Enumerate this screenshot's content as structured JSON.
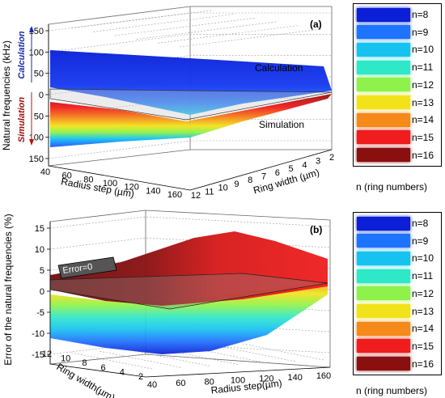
{
  "legend_labels": [
    "n=8",
    "n=9",
    "n=10",
    "n=11",
    "n=12",
    "n=13",
    "n=14",
    "n=15",
    "n=16"
  ],
  "legend_colors": [
    "#0a1fd6",
    "#1e73ff",
    "#16c3f0",
    "#2ee8c8",
    "#8ef24a",
    "#f2e21a",
    "#f58a1a",
    "#ef1d1d",
    "#8a0f0f"
  ],
  "legend_caption": "n (ring numbers)",
  "chart_data": [
    {
      "type": "surface3d",
      "panel_label": "(a)",
      "zlabel": "Natural frequencies (kHz)",
      "xlabel": "Radius step (µm)",
      "ylabel": "Ring width (µm)",
      "z_ticks": [
        "150",
        "100",
        "50",
        "0",
        "50",
        "100",
        "150"
      ],
      "x_ticks": [
        "40",
        "60",
        "80",
        "100",
        "120",
        "140",
        "160"
      ],
      "y_ticks": [
        "12",
        "11",
        "10",
        "9",
        "8",
        "7",
        "6",
        "5",
        "4",
        "3",
        "2"
      ],
      "side_label_top": "Calculation",
      "side_label_bottom": "Simulation",
      "annotations": [
        "Calculation",
        "Simulation"
      ],
      "series": [
        "n=8",
        "n=9",
        "n=10",
        "n=11",
        "n=12",
        "n=13",
        "n=14",
        "n=15",
        "n=16"
      ]
    },
    {
      "type": "surface3d",
      "panel_label": "(b)",
      "zlabel": "Error of the natural frequencies (%)",
      "xlabel": "Radius step(µm)",
      "ylabel": "Ring width(µm)",
      "z_ticks": [
        "15",
        "10",
        "5",
        "0",
        "-5",
        "-10",
        "-15"
      ],
      "z_values": [
        15,
        10,
        5,
        0,
        -5,
        -10,
        -15
      ],
      "x_ticks": [
        "40",
        "60",
        "80",
        "100",
        "120",
        "140",
        "160"
      ],
      "y_ticks": [
        "2",
        "4",
        "6",
        "8",
        "10",
        "12"
      ],
      "annotations": [
        "Error=0"
      ],
      "series": [
        "n=8",
        "n=9",
        "n=10",
        "n=11",
        "n=12",
        "n=13",
        "n=14",
        "n=15",
        "n=16"
      ]
    }
  ]
}
